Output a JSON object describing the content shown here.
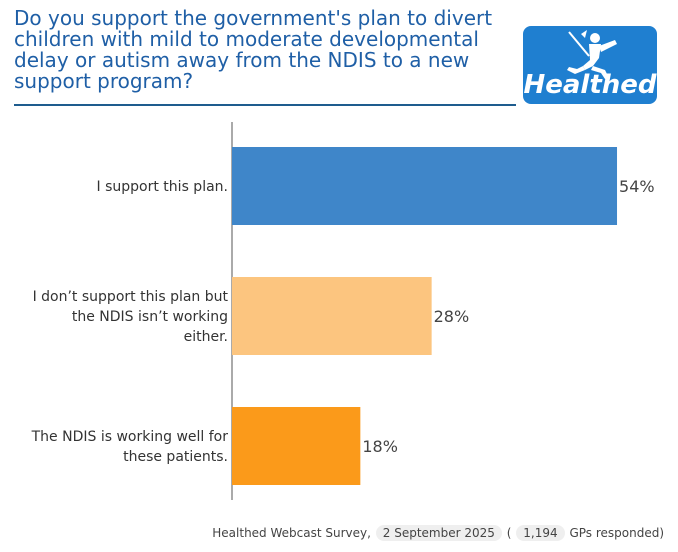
{
  "title": "Do you support the government's plan to divert children with mild to moderate developmental delay or autism away from the NDIS to a new support program?",
  "logo": {
    "text": "Healthed",
    "icon": "hermes-runner-icon"
  },
  "chart_data": {
    "type": "bar",
    "orientation": "horizontal",
    "categories": [
      [
        "I support this plan."
      ],
      [
        "I don’t support this plan but",
        "the NDIS isn’t working",
        "either."
      ],
      [
        "The NDIS is working well for",
        "these patients."
      ]
    ],
    "values": [
      54,
      28,
      18
    ],
    "value_labels": [
      "54%",
      "28%",
      "18%"
    ],
    "colors": [
      "#3f86c9",
      "#fcc57f",
      "#fb9a1a"
    ],
    "xlim": [
      0,
      100
    ],
    "grid": false
  },
  "footer": {
    "source": "Healthed Webcast Survey,",
    "date": "2 September 2025",
    "open": "(",
    "count": "1,194",
    "suffix": "GPs responded)"
  },
  "colors": {
    "title": "#1f5fa6",
    "rule": "#1e5c8e",
    "logo_bg": "#1f7fd0"
  }
}
